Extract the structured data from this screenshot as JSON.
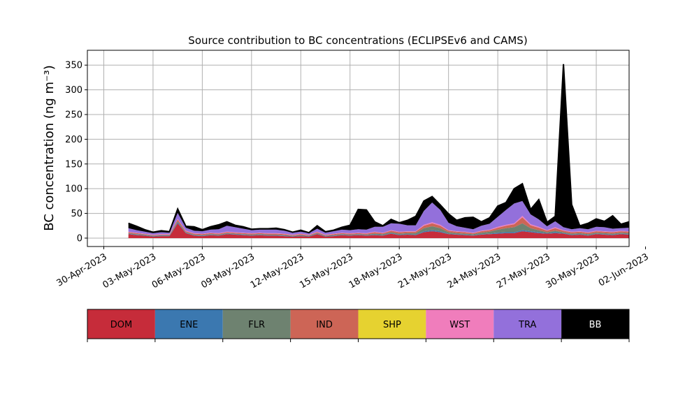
{
  "chart_data": {
    "type": "area",
    "stacked": true,
    "title": "Source contribution to BC concentrations (ECLIPSEv6 and CAMS)",
    "ylabel": "BC concentration (ng m⁻³)",
    "xlabel": "",
    "ylim": [
      -17,
      380
    ],
    "xlim": [
      "2023-04-29",
      "2023-06-01"
    ],
    "yticks": [
      0,
      50,
      100,
      150,
      200,
      250,
      300,
      350
    ],
    "xticks": [
      "30-Apr-2023",
      "03-May-2023",
      "06-May-2023",
      "09-May-2023",
      "12-May-2023",
      "15-May-2023",
      "18-May-2023",
      "21-May-2023",
      "24-May-2023",
      "27-May-2023",
      "30-May-2023",
      "02-Jun-2023"
    ],
    "grid": true,
    "total_series_outline": true,
    "x_dates": [
      "2023-05-01T12",
      "2023-05-02T00",
      "2023-05-02T12",
      "2023-05-03T00",
      "2023-05-03T12",
      "2023-05-04T00",
      "2023-05-04T12",
      "2023-05-05T00",
      "2023-05-05T12",
      "2023-05-06T00",
      "2023-05-06T12",
      "2023-05-07T00",
      "2023-05-07T12",
      "2023-05-08T00",
      "2023-05-08T12",
      "2023-05-09T00",
      "2023-05-09T12",
      "2023-05-10T00",
      "2023-05-10T12",
      "2023-05-11T00",
      "2023-05-11T12",
      "2023-05-12T00",
      "2023-05-12T12",
      "2023-05-13T00",
      "2023-05-13T12",
      "2023-05-14T00",
      "2023-05-14T12",
      "2023-05-15T00",
      "2023-05-15T12",
      "2023-05-16T00",
      "2023-05-16T12",
      "2023-05-17T00",
      "2023-05-17T12",
      "2023-05-18T00",
      "2023-05-18T12",
      "2023-05-19T00",
      "2023-05-19T12",
      "2023-05-20T00",
      "2023-05-20T12",
      "2023-05-21T00",
      "2023-05-21T12",
      "2023-05-22T00",
      "2023-05-22T12",
      "2023-05-23T00",
      "2023-05-23T12",
      "2023-05-24T00",
      "2023-05-24T12",
      "2023-05-25T00",
      "2023-05-25T12",
      "2023-05-26T00",
      "2023-05-26T12",
      "2023-05-27T00",
      "2023-05-27T12",
      "2023-05-28T00",
      "2023-05-28T12",
      "2023-05-29T00",
      "2023-05-29T12",
      "2023-05-30T00",
      "2023-05-30T12",
      "2023-05-31T00",
      "2023-05-31T12",
      "2023-06-01T00"
    ],
    "series": [
      {
        "name": "DOM",
        "color": "#c62c3a",
        "values": [
          8,
          6,
          5,
          3,
          4,
          4,
          30,
          10,
          5,
          4,
          6,
          5,
          8,
          7,
          6,
          5,
          6,
          5,
          5,
          4,
          3,
          4,
          3,
          8,
          3,
          4,
          6,
          5,
          6,
          5,
          6,
          5,
          9,
          6,
          7,
          6,
          12,
          14,
          12,
          8,
          7,
          6,
          5,
          7,
          8,
          9,
          10,
          10,
          14,
          12,
          10,
          9,
          10,
          9,
          6,
          7,
          5,
          8,
          7,
          6,
          8,
          7
        ]
      },
      {
        "name": "ENE",
        "color": "#3b78b0",
        "values": [
          1,
          1,
          1,
          1,
          1,
          1,
          2,
          1,
          1,
          1,
          1,
          1,
          1,
          1,
          1,
          1,
          1,
          1,
          1,
          1,
          1,
          1,
          1,
          1,
          1,
          1,
          1,
          1,
          1,
          1,
          1,
          1,
          1,
          1,
          1,
          1,
          2,
          2,
          2,
          1,
          1,
          1,
          1,
          1,
          1,
          2,
          2,
          2,
          2,
          2,
          2,
          1,
          2,
          1,
          1,
          1,
          1,
          1,
          1,
          1,
          1,
          1
        ]
      },
      {
        "name": "FLR",
        "color": "#6e8270",
        "values": [
          1,
          1,
          1,
          1,
          1,
          1,
          2,
          1,
          1,
          1,
          1,
          1,
          1,
          1,
          1,
          1,
          1,
          1,
          1,
          1,
          1,
          1,
          1,
          1,
          1,
          1,
          1,
          1,
          1,
          1,
          2,
          2,
          2,
          2,
          2,
          3,
          6,
          8,
          6,
          3,
          2,
          2,
          2,
          3,
          4,
          6,
          8,
          10,
          14,
          6,
          4,
          2,
          3,
          2,
          2,
          2,
          2,
          2,
          2,
          2,
          2,
          2
        ]
      },
      {
        "name": "IND",
        "color": "#cd6556",
        "values": [
          2,
          2,
          1,
          1,
          1,
          1,
          4,
          2,
          2,
          2,
          2,
          2,
          2,
          2,
          2,
          2,
          2,
          2,
          2,
          2,
          1,
          2,
          1,
          2,
          1,
          2,
          2,
          2,
          2,
          2,
          3,
          2,
          3,
          3,
          3,
          3,
          5,
          6,
          5,
          3,
          3,
          3,
          2,
          3,
          3,
          4,
          5,
          6,
          12,
          6,
          5,
          3,
          5,
          3,
          3,
          3,
          3,
          3,
          3,
          3,
          3,
          3
        ]
      },
      {
        "name": "SHP",
        "color": "#e6d230",
        "values": [
          0,
          0,
          0,
          0,
          0,
          0,
          0,
          0,
          0,
          0,
          0,
          0,
          0,
          0,
          0,
          0,
          0,
          0,
          0,
          0,
          0,
          0,
          0,
          0,
          0,
          0,
          0,
          0,
          0,
          0,
          0,
          0,
          0,
          0,
          0,
          0,
          0,
          0,
          0,
          0,
          0,
          0,
          0,
          0,
          0,
          0,
          0,
          0,
          0,
          0,
          0,
          0,
          0,
          0,
          0,
          0,
          0,
          0,
          0,
          0,
          0,
          0
        ]
      },
      {
        "name": "WST",
        "color": "#f07dbc",
        "values": [
          1,
          1,
          1,
          1,
          1,
          1,
          1,
          1,
          1,
          1,
          1,
          1,
          1,
          1,
          1,
          1,
          1,
          1,
          1,
          1,
          1,
          1,
          1,
          1,
          1,
          1,
          1,
          1,
          1,
          1,
          1,
          1,
          1,
          1,
          1,
          1,
          2,
          2,
          2,
          1,
          1,
          1,
          1,
          1,
          1,
          2,
          2,
          2,
          3,
          2,
          2,
          1,
          2,
          1,
          1,
          1,
          1,
          1,
          1,
          1,
          1,
          1
        ]
      },
      {
        "name": "TRA",
        "color": "#9370db",
        "values": [
          7,
          5,
          4,
          3,
          4,
          3,
          12,
          6,
          5,
          5,
          6,
          8,
          12,
          10,
          8,
          6,
          6,
          7,
          7,
          6,
          4,
          4,
          3,
          6,
          4,
          5,
          6,
          6,
          7,
          7,
          10,
          12,
          14,
          16,
          12,
          12,
          28,
          40,
          30,
          15,
          10,
          8,
          7,
          10,
          12,
          20,
          30,
          40,
          30,
          20,
          15,
          8,
          12,
          6,
          5,
          6,
          6,
          8,
          8,
          6,
          5,
          7
        ]
      },
      {
        "name": "BB",
        "color": "#000000",
        "values": [
          10,
          8,
          4,
          2,
          3,
          2,
          8,
          3,
          8,
          3,
          6,
          9,
          8,
          4,
          4,
          2,
          2,
          2,
          3,
          2,
          1,
          3,
          1,
          6,
          2,
          2,
          5,
          10,
          40,
          40,
          10,
          2,
          8,
          2,
          10,
          18,
          20,
          12,
          10,
          18,
          12,
          20,
          24,
          8,
          12,
          22,
          15,
          30,
          35,
          10,
          40,
          8,
          10,
          330,
          50,
          5,
          12,
          16,
          12,
          26,
          8,
          12
        ]
      }
    ],
    "legend": {
      "placement": "below",
      "labels": [
        "DOM",
        "ENE",
        "FLR",
        "IND",
        "SHP",
        "WST",
        "TRA",
        "BB"
      ]
    }
  }
}
